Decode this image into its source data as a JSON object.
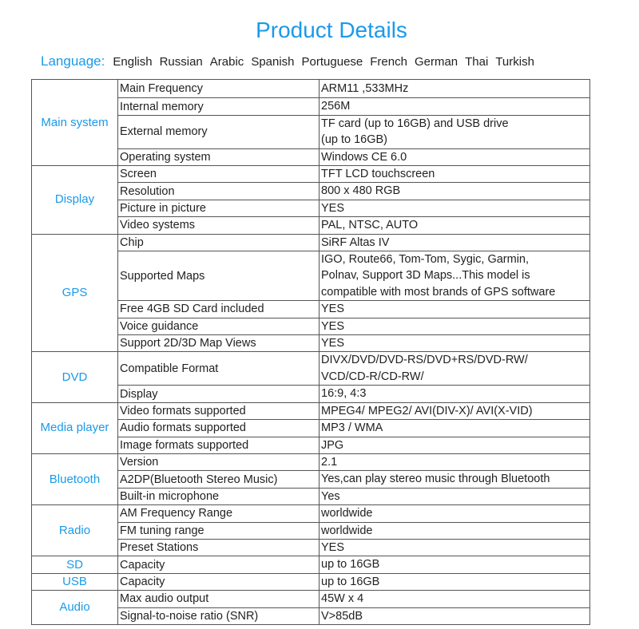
{
  "title": "Product Details",
  "language": {
    "label": "Language:",
    "items": [
      "English",
      "Russian",
      "Arabic",
      "Spanish",
      "Portuguese",
      "French",
      "German",
      "Thai",
      "Turkish"
    ]
  },
  "colors": {
    "accent": "#1a9ae8",
    "border": "#555555"
  },
  "specs": [
    {
      "category": "Main system",
      "rows": [
        {
          "name": "Main Frequency",
          "value": [
            "ARM11 ,533MHz"
          ]
        },
        {
          "name": "Internal memory",
          "value": [
            "256M"
          ]
        },
        {
          "name": "External memory",
          "value": [
            "TF card (up to 16GB) and USB drive",
            "(up to 16GB)"
          ]
        },
        {
          "name": "Operating system",
          "value": [
            "Windows CE 6.0"
          ]
        }
      ]
    },
    {
      "category": "Display",
      "rows": [
        {
          "name": "Screen",
          "value": [
            "TFT LCD touchscreen"
          ]
        },
        {
          "name": "Resolution",
          "value": [
            "800 x 480 RGB"
          ]
        },
        {
          "name": "Picture in picture",
          "value": [
            "YES"
          ]
        },
        {
          "name": "Video systems",
          "value": [
            "PAL, NTSC, AUTO"
          ]
        }
      ]
    },
    {
      "category": "GPS",
      "rows": [
        {
          "name": "Chip",
          "value": [
            "SiRF Altas IV"
          ]
        },
        {
          "name": "Supported Maps",
          "value": [
            "IGO, Route66, Tom-Tom, Sygic, Garmin,",
            "Polnav, Support 3D Maps...This model is",
            "compatible with most brands of GPS software"
          ]
        },
        {
          "name": "Free 4GB SD Card included",
          "value": [
            "YES"
          ]
        },
        {
          "name": "Voice guidance",
          "value": [
            "YES"
          ]
        },
        {
          "name": "Support 2D/3D Map Views",
          "value": [
            "YES"
          ]
        }
      ]
    },
    {
      "category": "DVD",
      "rows": [
        {
          "name": "Compatible Format",
          "value": [
            "DIVX/DVD/DVD-RS/DVD+RS/DVD-RW/",
            "VCD/CD-R/CD-RW/"
          ]
        },
        {
          "name": "Display",
          "value": [
            "16:9, 4:3"
          ]
        }
      ]
    },
    {
      "category": "Media player",
      "rows": [
        {
          "name": "Video formats supported",
          "value": [
            "MPEG4/ MPEG2/ AVI(DIV-X)/ AVI(X-VID)"
          ]
        },
        {
          "name": "Audio formats supported",
          "value": [
            "MP3 / WMA"
          ]
        },
        {
          "name": "Image formats supported",
          "value": [
            "JPG"
          ]
        }
      ]
    },
    {
      "category": "Bluetooth",
      "rows": [
        {
          "name": "Version",
          "value": [
            "2.1"
          ]
        },
        {
          "name": "A2DP(Bluetooth Stereo Music)",
          "value": [
            "Yes,can play stereo music through Bluetooth"
          ]
        },
        {
          "name": "Built-in microphone",
          "value": [
            "Yes"
          ]
        }
      ]
    },
    {
      "category": "Radio",
      "rows": [
        {
          "name": "AM Frequency Range",
          "value": [
            "worldwide"
          ]
        },
        {
          "name": "FM tuning range",
          "value": [
            "worldwide"
          ]
        },
        {
          "name": "Preset Stations",
          "value": [
            "YES"
          ]
        }
      ]
    },
    {
      "category": "SD",
      "rows": [
        {
          "name": "Capacity",
          "value": [
            "up to 16GB"
          ]
        }
      ]
    },
    {
      "category": "USB",
      "rows": [
        {
          "name": "Capacity",
          "value": [
            "up to 16GB"
          ]
        }
      ]
    },
    {
      "category": "Audio",
      "rows": [
        {
          "name": "Max audio output",
          "value": [
            "45W x 4"
          ]
        },
        {
          "name": "Signal-to-noise ratio (SNR)",
          "value": [
            "V>85dB"
          ]
        }
      ]
    }
  ]
}
